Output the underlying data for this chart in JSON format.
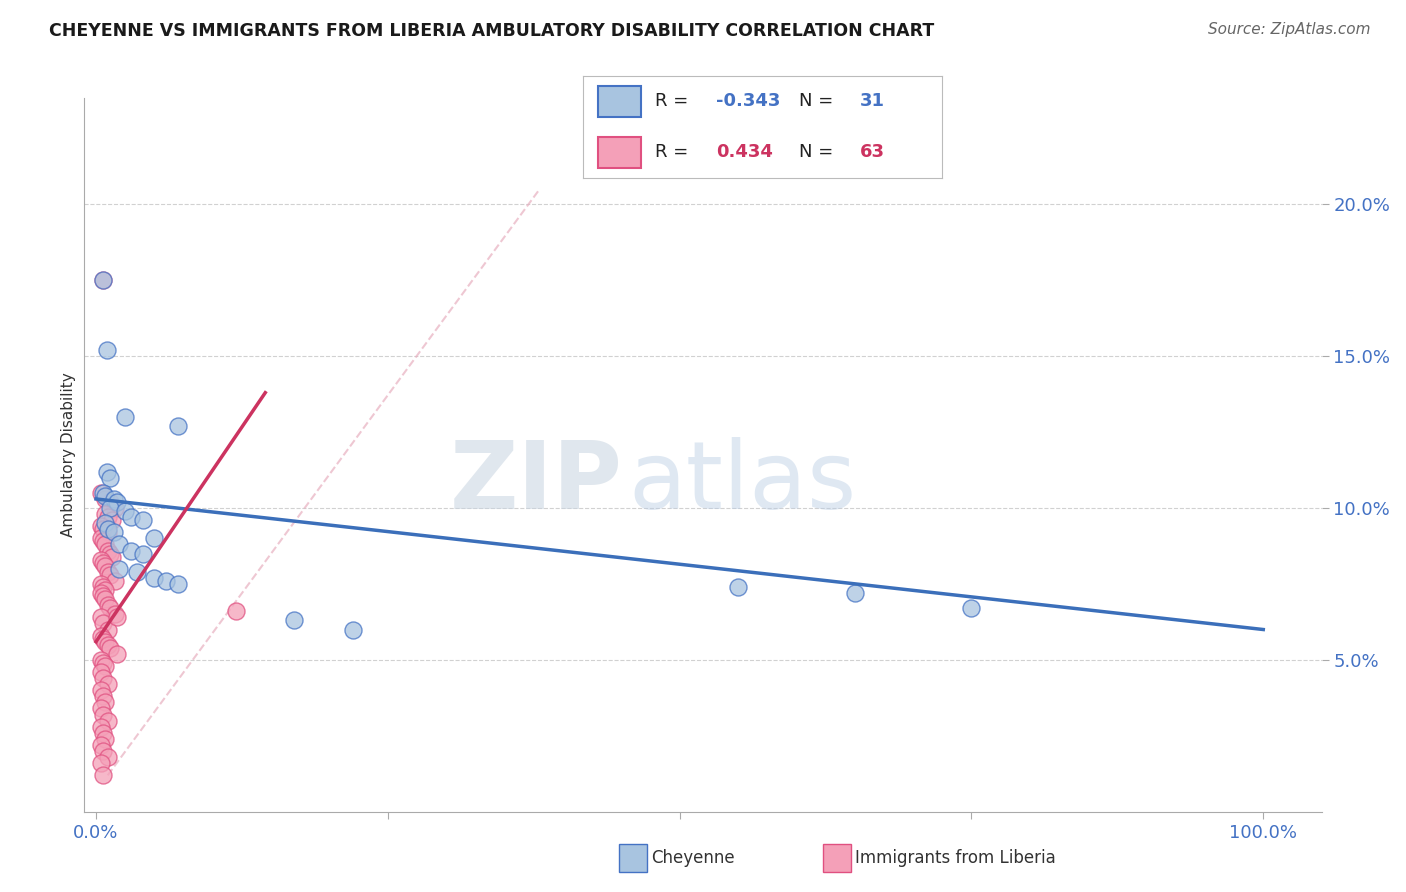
{
  "title": "CHEYENNE VS IMMIGRANTS FROM LIBERIA AMBULATORY DISABILITY CORRELATION CHART",
  "source": "Source: ZipAtlas.com",
  "ylabel": "Ambulatory Disability",
  "ytick_labels": [
    "5.0%",
    "10.0%",
    "15.0%",
    "20.0%"
  ],
  "ytick_values": [
    0.05,
    0.1,
    0.15,
    0.2
  ],
  "xtick_labels": [
    "0.0%",
    "",
    "",
    "",
    "100.0%"
  ],
  "xtick_values": [
    0.0,
    0.25,
    0.5,
    0.75,
    1.0
  ],
  "xlim": [
    -0.01,
    1.05
  ],
  "ylim": [
    0.0,
    0.235
  ],
  "cheyenne_color": "#a8c4e0",
  "liberia_color": "#f4a0b8",
  "cheyenne_edge_color": "#4472c4",
  "liberia_edge_color": "#e05080",
  "cheyenne_line_color": "#3b6fba",
  "liberia_line_color": "#cc3360",
  "cheyenne_line_x": [
    0.0,
    1.0
  ],
  "cheyenne_line_y": [
    0.103,
    0.06
  ],
  "liberia_line_x": [
    0.0,
    0.145
  ],
  "liberia_line_y": [
    0.056,
    0.138
  ],
  "diag_line_x": [
    0.01,
    0.38
  ],
  "diag_line_y": [
    0.012,
    0.205
  ],
  "cheyenne_scatter": [
    [
      0.006,
      0.175
    ],
    [
      0.009,
      0.152
    ],
    [
      0.025,
      0.13
    ],
    [
      0.07,
      0.127
    ],
    [
      0.009,
      0.112
    ],
    [
      0.012,
      0.11
    ],
    [
      0.006,
      0.105
    ],
    [
      0.008,
      0.104
    ],
    [
      0.015,
      0.103
    ],
    [
      0.018,
      0.102
    ],
    [
      0.012,
      0.1
    ],
    [
      0.025,
      0.099
    ],
    [
      0.03,
      0.097
    ],
    [
      0.04,
      0.096
    ],
    [
      0.008,
      0.095
    ],
    [
      0.01,
      0.093
    ],
    [
      0.015,
      0.092
    ],
    [
      0.05,
      0.09
    ],
    [
      0.02,
      0.088
    ],
    [
      0.03,
      0.086
    ],
    [
      0.04,
      0.085
    ],
    [
      0.02,
      0.08
    ],
    [
      0.035,
      0.079
    ],
    [
      0.05,
      0.077
    ],
    [
      0.06,
      0.076
    ],
    [
      0.07,
      0.075
    ],
    [
      0.55,
      0.074
    ],
    [
      0.65,
      0.072
    ],
    [
      0.75,
      0.067
    ],
    [
      0.17,
      0.063
    ],
    [
      0.22,
      0.06
    ]
  ],
  "liberia_scatter": [
    [
      0.006,
      0.175
    ],
    [
      0.004,
      0.105
    ],
    [
      0.008,
      0.103
    ],
    [
      0.012,
      0.102
    ],
    [
      0.016,
      0.1
    ],
    [
      0.008,
      0.098
    ],
    [
      0.01,
      0.097
    ],
    [
      0.014,
      0.096
    ],
    [
      0.004,
      0.094
    ],
    [
      0.006,
      0.093
    ],
    [
      0.01,
      0.092
    ],
    [
      0.004,
      0.09
    ],
    [
      0.006,
      0.089
    ],
    [
      0.008,
      0.088
    ],
    [
      0.01,
      0.086
    ],
    [
      0.012,
      0.085
    ],
    [
      0.014,
      0.084
    ],
    [
      0.004,
      0.083
    ],
    [
      0.006,
      0.082
    ],
    [
      0.008,
      0.081
    ],
    [
      0.01,
      0.079
    ],
    [
      0.012,
      0.078
    ],
    [
      0.016,
      0.076
    ],
    [
      0.004,
      0.075
    ],
    [
      0.006,
      0.074
    ],
    [
      0.008,
      0.073
    ],
    [
      0.004,
      0.072
    ],
    [
      0.006,
      0.071
    ],
    [
      0.008,
      0.07
    ],
    [
      0.01,
      0.068
    ],
    [
      0.012,
      0.067
    ],
    [
      0.016,
      0.065
    ],
    [
      0.004,
      0.064
    ],
    [
      0.006,
      0.062
    ],
    [
      0.01,
      0.06
    ],
    [
      0.004,
      0.058
    ],
    [
      0.006,
      0.057
    ],
    [
      0.008,
      0.056
    ],
    [
      0.01,
      0.055
    ],
    [
      0.012,
      0.054
    ],
    [
      0.018,
      0.052
    ],
    [
      0.004,
      0.05
    ],
    [
      0.006,
      0.049
    ],
    [
      0.008,
      0.048
    ],
    [
      0.004,
      0.046
    ],
    [
      0.006,
      0.044
    ],
    [
      0.01,
      0.042
    ],
    [
      0.004,
      0.04
    ],
    [
      0.006,
      0.038
    ],
    [
      0.008,
      0.036
    ],
    [
      0.004,
      0.034
    ],
    [
      0.006,
      0.032
    ],
    [
      0.01,
      0.03
    ],
    [
      0.004,
      0.028
    ],
    [
      0.006,
      0.026
    ],
    [
      0.008,
      0.024
    ],
    [
      0.004,
      0.022
    ],
    [
      0.006,
      0.02
    ],
    [
      0.01,
      0.018
    ],
    [
      0.004,
      0.016
    ],
    [
      0.018,
      0.064
    ],
    [
      0.12,
      0.066
    ],
    [
      0.006,
      0.012
    ]
  ],
  "watermark_zip": "ZIP",
  "watermark_atlas": "atlas",
  "background_color": "#ffffff",
  "grid_color": "#cccccc"
}
